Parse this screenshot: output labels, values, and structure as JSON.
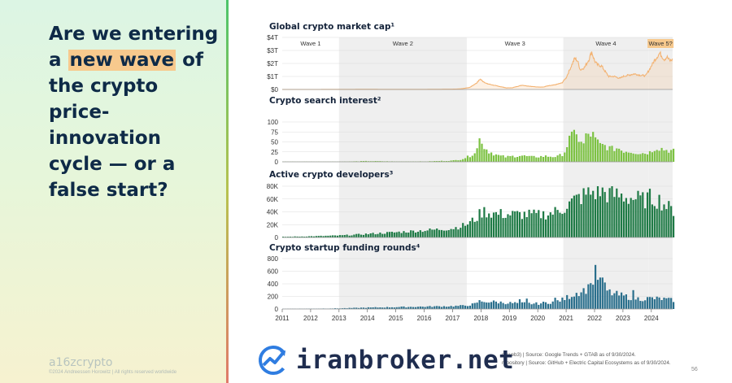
{
  "headline": {
    "before": "Are we entering a",
    "highlight": "new wave",
    "after": "of the crypto price-innovation cycle — or a false start?"
  },
  "footer": {
    "logo": "a16zcrypto",
    "copyright": "©2024 Andreessen Horowitz  |  All rights reserved worldwide",
    "source_line1": "n, web3) | Source: Google Trends + GTAB as of 9/30/2024.",
    "source_line2": "repository | Source: GitHub + Electric Capital Ecosystems as of 9/30/2024.",
    "page_number": "56"
  },
  "watermark": {
    "text": "iranbroker.net"
  },
  "colors": {
    "market_cap": "#f3b271",
    "search": "#7cc242",
    "developers": "#1e7a45",
    "funding": "#2a6f8c",
    "wave_band": "#efefef",
    "wave5_label_bg": "#f7c98d"
  },
  "chart_data": {
    "type": "bar",
    "x_axis": {
      "range": [
        2011,
        2024.75
      ],
      "ticks": [
        "2011",
        "2012",
        "2013",
        "2014",
        "2015",
        "2016",
        "2017",
        "2018",
        "2019",
        "2020",
        "2021",
        "2022",
        "2023",
        "2024"
      ]
    },
    "waves": [
      {
        "label": "Wave 1",
        "start": 2011,
        "end": 2013,
        "shaded": false
      },
      {
        "label": "Wave 2",
        "start": 2013,
        "end": 2017.5,
        "shaded": true
      },
      {
        "label": "Wave 3",
        "start": 2017.5,
        "end": 2020.9,
        "shaded": false
      },
      {
        "label": "Wave 4",
        "start": 2020.9,
        "end": 2023.9,
        "shaded": true
      },
      {
        "label": "Wave 5?",
        "start": 2023.9,
        "end": 2024.75,
        "shaded": false,
        "highlight": true
      }
    ],
    "panels": [
      {
        "id": "market_cap",
        "type": "area",
        "title": "Global crypto market cap¹",
        "ylim": [
          0,
          4
        ],
        "yticks": [
          "$0",
          "$1T",
          "$2T",
          "$3T",
          "$4T"
        ],
        "ytick_values": [
          0,
          1,
          2,
          3,
          4
        ],
        "points": [
          [
            2011,
            0.0
          ],
          [
            2012,
            0.002
          ],
          [
            2013,
            0.005
          ],
          [
            2013.9,
            0.012
          ],
          [
            2014,
            0.012
          ],
          [
            2015,
            0.005
          ],
          [
            2016,
            0.008
          ],
          [
            2017,
            0.02
          ],
          [
            2017.3,
            0.05
          ],
          [
            2017.6,
            0.15
          ],
          [
            2017.85,
            0.5
          ],
          [
            2017.97,
            0.8
          ],
          [
            2018.05,
            0.65
          ],
          [
            2018.2,
            0.45
          ],
          [
            2018.5,
            0.3
          ],
          [
            2018.9,
            0.12
          ],
          [
            2019.1,
            0.13
          ],
          [
            2019.45,
            0.33
          ],
          [
            2019.6,
            0.28
          ],
          [
            2019.9,
            0.2
          ],
          [
            2020.2,
            0.18
          ],
          [
            2020.3,
            0.25
          ],
          [
            2020.6,
            0.35
          ],
          [
            2020.85,
            0.5
          ],
          [
            2021,
            0.9
          ],
          [
            2021.1,
            1.4
          ],
          [
            2021.3,
            2.4
          ],
          [
            2021.4,
            2.2
          ],
          [
            2021.5,
            1.5
          ],
          [
            2021.65,
            1.7
          ],
          [
            2021.8,
            2.3
          ],
          [
            2021.9,
            2.9
          ],
          [
            2022,
            2.2
          ],
          [
            2022.1,
            1.9
          ],
          [
            2022.25,
            1.8
          ],
          [
            2022.4,
            1.3
          ],
          [
            2022.5,
            1.0
          ],
          [
            2022.7,
            1.0
          ],
          [
            2022.9,
            0.85
          ],
          [
            2023,
            1.0
          ],
          [
            2023.2,
            1.1
          ],
          [
            2023.4,
            1.2
          ],
          [
            2023.6,
            1.1
          ],
          [
            2023.8,
            1.05
          ],
          [
            2023.95,
            1.6
          ],
          [
            2024.1,
            2.2
          ],
          [
            2024.2,
            2.5
          ],
          [
            2024.3,
            2.8
          ],
          [
            2024.45,
            2.3
          ],
          [
            2024.55,
            2.5
          ],
          [
            2024.65,
            2.2
          ],
          [
            2024.75,
            2.3
          ]
        ]
      },
      {
        "id": "search",
        "type": "bar",
        "title": "Crypto search interest²",
        "ylim": [
          0,
          100
        ],
        "yticks": [
          "0",
          "25",
          "50",
          "75",
          "100"
        ],
        "ytick_values": [
          0,
          25,
          50,
          75,
          100
        ],
        "points": [
          [
            2011,
            0.5
          ],
          [
            2013,
            0.5
          ],
          [
            2013.5,
            1
          ],
          [
            2014,
            2
          ],
          [
            2015,
            1
          ],
          [
            2016,
            1
          ],
          [
            2017,
            3
          ],
          [
            2017.3,
            6
          ],
          [
            2017.6,
            14
          ],
          [
            2017.85,
            28
          ],
          [
            2017.92,
            42
          ],
          [
            2017.97,
            60
          ],
          [
            2018.02,
            63
          ],
          [
            2018.1,
            38
          ],
          [
            2018.3,
            26
          ],
          [
            2018.6,
            16
          ],
          [
            2018.9,
            12
          ],
          [
            2019.4,
            16
          ],
          [
            2019.8,
            12
          ],
          [
            2020.3,
            14
          ],
          [
            2020.7,
            13
          ],
          [
            2020.9,
            20
          ],
          [
            2021,
            30
          ],
          [
            2021.1,
            55
          ],
          [
            2021.2,
            60
          ],
          [
            2021.3,
            72
          ],
          [
            2021.36,
            86
          ],
          [
            2021.45,
            55
          ],
          [
            2021.6,
            40
          ],
          [
            2021.75,
            70
          ],
          [
            2021.85,
            66
          ],
          [
            2021.9,
            75
          ],
          [
            2022,
            58
          ],
          [
            2022.2,
            42
          ],
          [
            2022.4,
            40
          ],
          [
            2022.6,
            32
          ],
          [
            2022.85,
            35
          ],
          [
            2023,
            28
          ],
          [
            2023.3,
            26
          ],
          [
            2023.6,
            22
          ],
          [
            2023.8,
            22
          ],
          [
            2024,
            25
          ],
          [
            2024.1,
            34
          ],
          [
            2024.2,
            36
          ],
          [
            2024.35,
            34
          ],
          [
            2024.5,
            30
          ],
          [
            2024.75,
            28
          ]
        ]
      },
      {
        "id": "developers",
        "type": "bar",
        "title": "Active crypto developers³",
        "ylim": [
          0,
          80000
        ],
        "yticks": [
          "0",
          "20K",
          "40K",
          "60K",
          "80K"
        ],
        "ytick_values": [
          0,
          20000,
          40000,
          60000,
          80000
        ],
        "points": [
          [
            2011,
            1000
          ],
          [
            2012,
            1800
          ],
          [
            2013,
            3000
          ],
          [
            2013.5,
            4000
          ],
          [
            2014,
            5500
          ],
          [
            2015,
            8000
          ],
          [
            2016,
            11000
          ],
          [
            2017,
            14000
          ],
          [
            2017.5,
            20000
          ],
          [
            2017.85,
            30000
          ],
          [
            2018,
            38000
          ],
          [
            2018.1,
            41000
          ],
          [
            2018.5,
            37000
          ],
          [
            2019,
            36000
          ],
          [
            2019.5,
            36000
          ],
          [
            2020,
            35000
          ],
          [
            2020.5,
            38000
          ],
          [
            2020.9,
            45000
          ],
          [
            2021.2,
            55000
          ],
          [
            2021.5,
            63000
          ],
          [
            2021.9,
            70000
          ],
          [
            2022.2,
            72000
          ],
          [
            2022.5,
            68000
          ],
          [
            2022.9,
            65000
          ],
          [
            2023.3,
            62000
          ],
          [
            2023.7,
            58000
          ],
          [
            2024,
            62000
          ],
          [
            2024.3,
            58000
          ],
          [
            2024.75,
            42000
          ]
        ]
      },
      {
        "id": "funding",
        "type": "bar",
        "title": "Crypto startup funding rounds⁴",
        "ylim": [
          0,
          800
        ],
        "yticks": [
          "0",
          "200",
          "400",
          "600",
          "800"
        ],
        "ytick_values": [
          0,
          200,
          400,
          600,
          800
        ],
        "points": [
          [
            2011,
            3
          ],
          [
            2012,
            5
          ],
          [
            2013,
            10
          ],
          [
            2014,
            22
          ],
          [
            2015,
            30
          ],
          [
            2016,
            38
          ],
          [
            2017,
            45
          ],
          [
            2017.5,
            55
          ],
          [
            2017.9,
            90
          ],
          [
            2018.2,
            120
          ],
          [
            2018.6,
            110
          ],
          [
            2019,
            95
          ],
          [
            2019.5,
            90
          ],
          [
            2020,
            85
          ],
          [
            2020.5,
            110
          ],
          [
            2020.9,
            150
          ],
          [
            2021.2,
            220
          ],
          [
            2021.5,
            280
          ],
          [
            2021.8,
            330
          ],
          [
            2022.1,
            380
          ],
          [
            2022.3,
            330
          ],
          [
            2022.6,
            250
          ],
          [
            2022.9,
            220
          ],
          [
            2023.2,
            190
          ],
          [
            2023.6,
            160
          ],
          [
            2024,
            170
          ],
          [
            2024.4,
            160
          ],
          [
            2024.75,
            140
          ]
        ],
        "spikes": [
          [
            2017.9,
            140
          ],
          [
            2019.3,
            155
          ],
          [
            2019.55,
            165
          ],
          [
            2020.6,
            180
          ],
          [
            2021.85,
            410
          ],
          [
            2022.0,
            700
          ],
          [
            2022.2,
            500
          ],
          [
            2022.35,
            420
          ],
          [
            2023.3,
            300
          ]
        ]
      }
    ]
  }
}
